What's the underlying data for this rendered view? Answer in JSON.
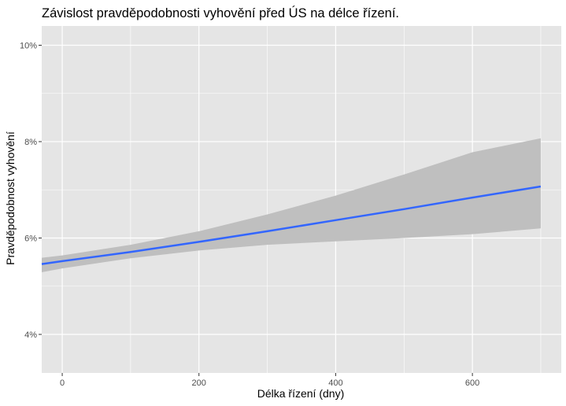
{
  "chart_data": {
    "type": "line",
    "title": "Závislost pravděpodobnosti vyhovění před ÚS na délce řízení.",
    "xlabel": "Délka řízení (dny)",
    "ylabel": "Pravděpodobnost vyhovění",
    "xlim": [
      -30,
      730
    ],
    "ylim": [
      3.2,
      10.4
    ],
    "x_ticks": [
      0,
      200,
      400,
      600
    ],
    "x_tick_labels": [
      "0",
      "200",
      "400",
      "600"
    ],
    "y_ticks": [
      4,
      6,
      8,
      10
    ],
    "y_tick_labels": [
      "4%",
      "6%",
      "8%",
      "10%"
    ],
    "grid": true,
    "series": [
      {
        "x": [
          -30,
          0,
          100,
          200,
          300,
          400,
          500,
          600,
          700
        ],
        "y": [
          5.46,
          5.52,
          5.71,
          5.92,
          6.14,
          6.37,
          6.6,
          6.84,
          7.07
        ],
        "ci_upper": [
          5.59,
          5.64,
          5.86,
          6.14,
          6.49,
          6.88,
          7.32,
          7.78,
          8.07
        ],
        "ci_lower": [
          5.29,
          5.37,
          5.58,
          5.74,
          5.86,
          5.93,
          6.0,
          6.08,
          6.2
        ]
      }
    ],
    "colors": {
      "line": "#3366ff",
      "ribbon": "#bfbfbf",
      "panel": "#e5e5e5",
      "grid": "#ffffff"
    }
  }
}
